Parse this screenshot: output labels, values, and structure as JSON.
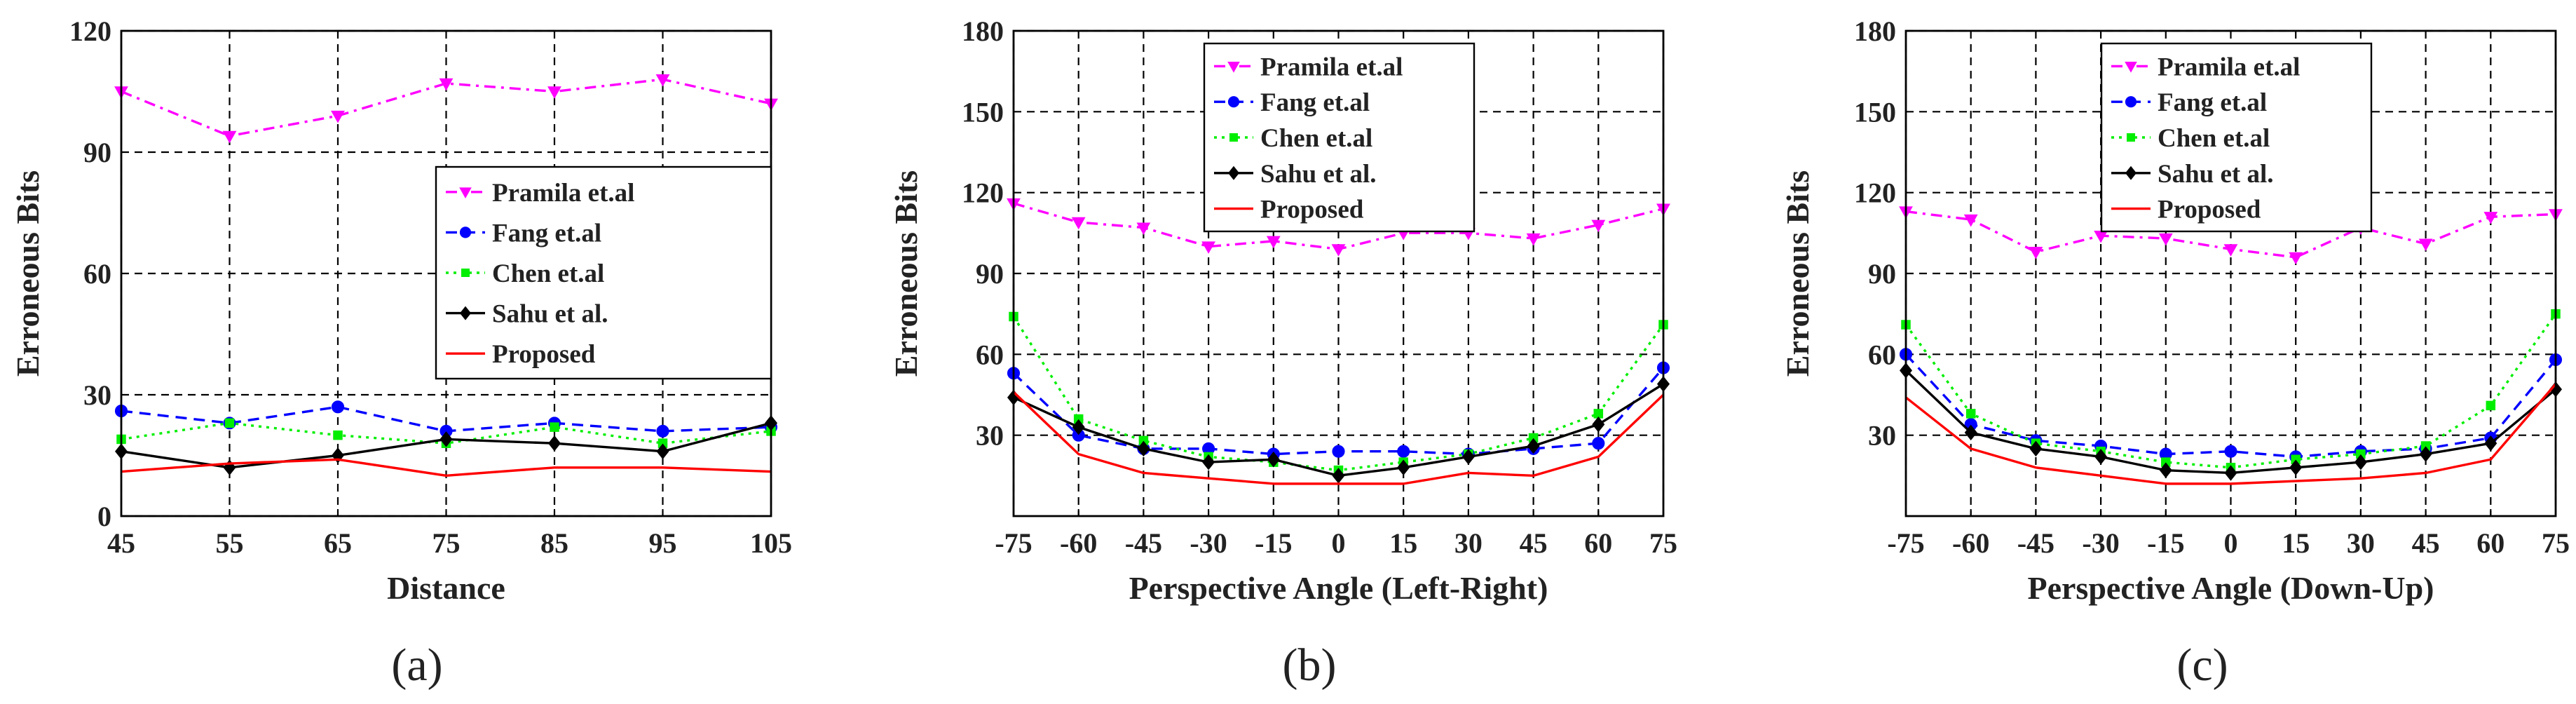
{
  "chart_data": [
    {
      "type": "line",
      "caption": "(a)",
      "xlabel": "Distance",
      "ylabel": "Erroneous Bits",
      "x": [
        45,
        55,
        65,
        75,
        85,
        95,
        105
      ],
      "xticks": [
        "45",
        "55",
        "65",
        "75",
        "85",
        "95",
        "105"
      ],
      "xlim": [
        45,
        105
      ],
      "ylim": [
        0,
        120
      ],
      "yticks": [
        "0",
        "30",
        "60",
        "90",
        "120"
      ],
      "grid": true,
      "legend_position": "center-right",
      "series": [
        {
          "name": "Pramila et.al",
          "color": "#ff00ff",
          "marker": "triangle-down",
          "dash": "dash-dot",
          "values": [
            105,
            94,
            99,
            107,
            105,
            108,
            102
          ]
        },
        {
          "name": "Fang et.al",
          "color": "#0000ff",
          "marker": "circle",
          "dash": "dashed",
          "values": [
            26,
            23,
            27,
            21,
            23,
            21,
            22
          ]
        },
        {
          "name": "Chen et.al",
          "color": "#00ee00",
          "marker": "square",
          "dash": "dotted",
          "values": [
            19,
            23,
            20,
            18,
            22,
            18,
            21
          ]
        },
        {
          "name": "Sahu et al.",
          "color": "#000000",
          "marker": "diamond",
          "dash": "solid",
          "values": [
            16,
            12,
            15,
            19,
            18,
            16,
            23
          ]
        },
        {
          "name": "Proposed",
          "color": "#ff0000",
          "marker": "none",
          "dash": "solid",
          "values": [
            11,
            13,
            14,
            10,
            12,
            12,
            11
          ]
        }
      ]
    },
    {
      "type": "line",
      "caption": "(b)",
      "xlabel": "Perspective Angle (Left-Right)",
      "ylabel": "Erroneous Bits",
      "x": [
        -75,
        -60,
        -45,
        -30,
        -15,
        0,
        15,
        30,
        45,
        60,
        75
      ],
      "xticks": [
        "-75",
        "-60",
        "-45",
        "-30",
        "-15",
        "0",
        "15",
        "30",
        "45",
        "60",
        "75"
      ],
      "xlim": [
        -75,
        75
      ],
      "ylim": [
        0,
        180
      ],
      "yticks": [
        "30",
        "60",
        "90",
        "120",
        "150",
        "180"
      ],
      "grid": true,
      "legend_position": "top-center",
      "series": [
        {
          "name": "Pramila et.al",
          "color": "#ff00ff",
          "marker": "triangle-down",
          "dash": "dash-dot",
          "values": [
            116,
            109,
            107,
            100,
            102,
            99,
            105,
            105,
            103,
            108,
            114
          ]
        },
        {
          "name": "Fang et.al",
          "color": "#0000ff",
          "marker": "circle",
          "dash": "dashed",
          "values": [
            53,
            30,
            25,
            25,
            23,
            24,
            24,
            23,
            25,
            27,
            55
          ]
        },
        {
          "name": "Chen et.al",
          "color": "#00ee00",
          "marker": "square",
          "dash": "dotted",
          "values": [
            74,
            36,
            28,
            22,
            20,
            17,
            20,
            23,
            29,
            38,
            71
          ]
        },
        {
          "name": "Sahu et al.",
          "color": "#000000",
          "marker": "diamond",
          "dash": "solid",
          "values": [
            44,
            33,
            25,
            20,
            21,
            15,
            18,
            22,
            26,
            34,
            49
          ]
        },
        {
          "name": "Proposed",
          "color": "#ff0000",
          "marker": "none",
          "dash": "solid",
          "values": [
            46,
            23,
            16,
            14,
            12,
            12,
            12,
            16,
            15,
            22,
            45
          ]
        }
      ]
    },
    {
      "type": "line",
      "caption": "(c)",
      "xlabel": "Perspective Angle (Down-Up)",
      "ylabel": "Erroneous Bits",
      "x": [
        -75,
        -60,
        -45,
        -30,
        -15,
        0,
        15,
        30,
        45,
        60,
        75
      ],
      "xticks": [
        "-75",
        "-60",
        "-45",
        "-30",
        "-15",
        "0",
        "15",
        "30",
        "45",
        "60",
        "75"
      ],
      "xlim": [
        -75,
        75
      ],
      "ylim": [
        0,
        180
      ],
      "yticks": [
        "30",
        "60",
        "90",
        "120",
        "150",
        "180"
      ],
      "grid": true,
      "legend_position": "top-left",
      "series": [
        {
          "name": "Pramila et.al",
          "color": "#ff00ff",
          "marker": "triangle-down",
          "dash": "dash-dot",
          "values": [
            113,
            110,
            98,
            104,
            103,
            99,
            96,
            107,
            101,
            111,
            112
          ]
        },
        {
          "name": "Fang et.al",
          "color": "#0000ff",
          "marker": "circle",
          "dash": "dashed",
          "values": [
            60,
            34,
            28,
            26,
            23,
            24,
            22,
            24,
            25,
            29,
            58
          ]
        },
        {
          "name": "Chen et.al",
          "color": "#00ee00",
          "marker": "square",
          "dash": "dotted",
          "values": [
            71,
            38,
            27,
            24,
            20,
            18,
            21,
            23,
            26,
            41,
            75
          ]
        },
        {
          "name": "Sahu et al.",
          "color": "#000000",
          "marker": "diamond",
          "dash": "solid",
          "values": [
            54,
            31,
            25,
            22,
            17,
            16,
            18,
            20,
            23,
            27,
            47
          ]
        },
        {
          "name": "Proposed",
          "color": "#ff0000",
          "marker": "none",
          "dash": "solid",
          "values": [
            44,
            25,
            18,
            15,
            12,
            12,
            13,
            14,
            16,
            21,
            49
          ]
        }
      ]
    }
  ]
}
